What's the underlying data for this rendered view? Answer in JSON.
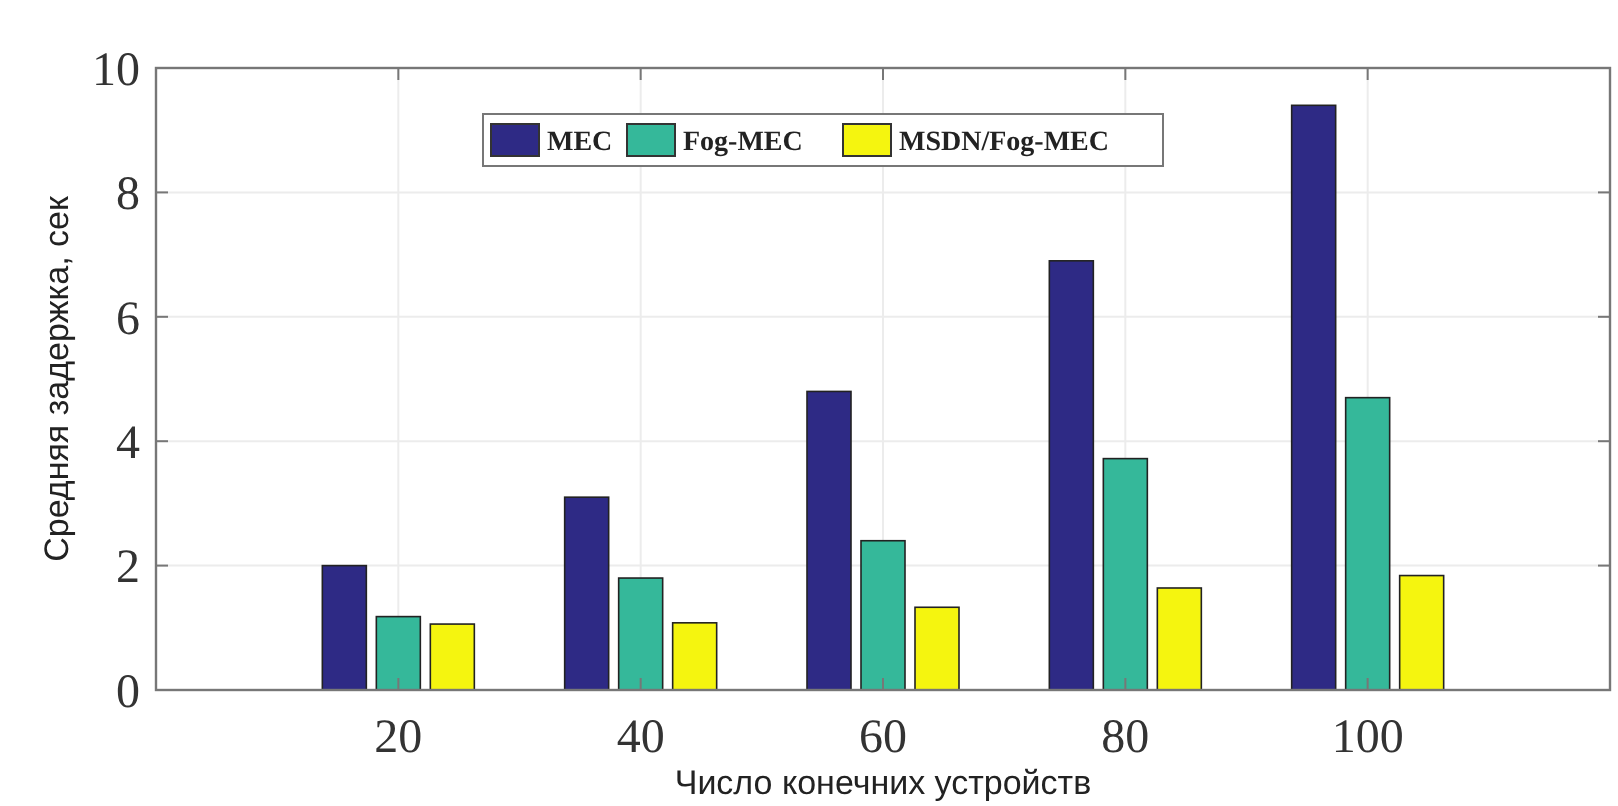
{
  "chart_data": {
    "type": "bar",
    "xlabel": "Число конечних устройств",
    "ylabel": "Средняя задержка, сек",
    "x": [
      20,
      40,
      60,
      80,
      100
    ],
    "xlim": [
      0,
      120
    ],
    "xticks": [
      20,
      40,
      60,
      80,
      100
    ],
    "ylim": [
      0,
      10
    ],
    "yticks": [
      0,
      2,
      4,
      6,
      8,
      10
    ],
    "grid": true,
    "legend": "top",
    "series": [
      {
        "name": "MEC",
        "color": "#2e2a85",
        "values": [
          2.0,
          3.1,
          4.8,
          6.9,
          9.4
        ]
      },
      {
        "name": "Fog-MEC",
        "color": "#35b89a",
        "values": [
          1.18,
          1.8,
          2.4,
          3.72,
          4.7
        ]
      },
      {
        "name": "MSDN/Fog-MEC",
        "color": "#f5f50f",
        "values": [
          1.06,
          1.08,
          1.33,
          1.64,
          1.84
        ]
      }
    ]
  }
}
